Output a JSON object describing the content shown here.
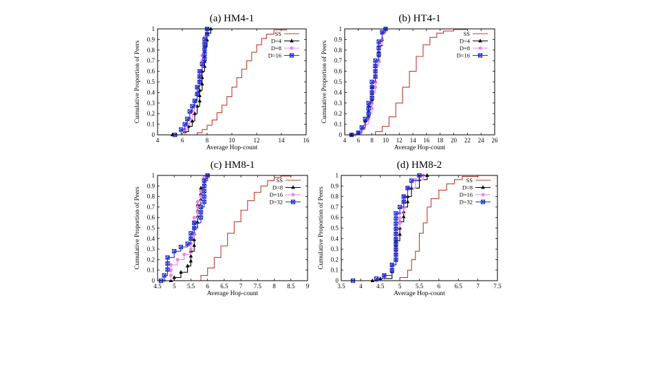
{
  "chart_data": [
    {
      "type": "line",
      "title": "(a) HM4-1",
      "xlabel": "Average Hop-count",
      "ylabel": "Cumulative Proportion of Peers",
      "xlim": [
        4,
        16
      ],
      "ylim": [
        0,
        1
      ],
      "xticks": [
        "4",
        "6",
        "8",
        "10",
        "12",
        "14",
        "16"
      ],
      "yticks": [
        "0",
        "0.1",
        "0.2",
        "0.3",
        "0.4",
        "0.5",
        "0.6",
        "0.7",
        "0.8",
        "0.9",
        "1"
      ],
      "legend_position": "top-right",
      "series": [
        {
          "name": "SS",
          "color": "#c0392b",
          "marker": "none",
          "x": [
            6.8,
            7.2,
            7.6,
            8.0,
            8.4,
            8.8,
            9.2,
            9.6,
            10.0,
            10.4,
            10.8,
            11.2,
            11.6,
            12.0,
            12.4,
            12.8,
            13.4,
            14.4
          ],
          "y": [
            0,
            0.02,
            0.05,
            0.09,
            0.14,
            0.21,
            0.28,
            0.36,
            0.45,
            0.54,
            0.62,
            0.7,
            0.78,
            0.85,
            0.91,
            0.95,
            0.99,
            1.0
          ]
        },
        {
          "name": "D=4",
          "color": "#000000",
          "marker": "triangle",
          "x": [
            5.2,
            6.2,
            6.5,
            6.8,
            7.0,
            7.2,
            7.4,
            7.6,
            7.8,
            8.0,
            8.3
          ],
          "y": [
            0,
            0.03,
            0.08,
            0.13,
            0.2,
            0.27,
            0.42,
            0.6,
            0.83,
            0.96,
            1.0
          ]
        },
        {
          "name": "D=8",
          "color": "#ee82ee",
          "marker": "circle",
          "x": [
            5.5,
            6.2,
            6.4,
            6.6,
            6.8,
            7.0,
            7.2,
            7.4,
            7.6,
            7.8,
            8.0
          ],
          "y": [
            0,
            0.05,
            0.1,
            0.15,
            0.22,
            0.32,
            0.45,
            0.6,
            0.75,
            0.92,
            1.0
          ]
        },
        {
          "name": "D=16",
          "color": "#1a2fd0",
          "marker": "x",
          "x": [
            5.4,
            5.9,
            6.2,
            6.4,
            6.6,
            6.8,
            7.0,
            7.2,
            7.4,
            7.6,
            7.8,
            8.0
          ],
          "y": [
            0,
            0.05,
            0.1,
            0.15,
            0.22,
            0.27,
            0.32,
            0.45,
            0.6,
            0.67,
            0.9,
            1.0
          ]
        }
      ]
    },
    {
      "type": "line",
      "title": "(b) HT4-1",
      "xlabel": "Average Hop-count",
      "ylabel": "Cumulative Proportion of Peers",
      "xlim": [
        4,
        26
      ],
      "ylim": [
        0,
        1
      ],
      "xticks": [
        "4",
        "6",
        "8",
        "10",
        "12",
        "14",
        "16",
        "18",
        "20",
        "22",
        "24",
        "26"
      ],
      "yticks": [
        "0",
        "0.1",
        "0.2",
        "0.3",
        "0.4",
        "0.5",
        "0.6",
        "0.7",
        "0.8",
        "0.9",
        "1"
      ],
      "legend_position": "top-right",
      "series": [
        {
          "name": "SS",
          "color": "#c0392b",
          "marker": "none",
          "x": [
            7.5,
            8.5,
            9.5,
            10.5,
            11.5,
            12.5,
            13.5,
            14.5,
            15.5,
            16.5,
            17.5,
            18.5,
            20.0,
            22.0
          ],
          "y": [
            0,
            0.03,
            0.08,
            0.17,
            0.3,
            0.45,
            0.6,
            0.74,
            0.85,
            0.92,
            0.96,
            0.98,
            0.995,
            1.0
          ]
        },
        {
          "name": "D=4",
          "color": "#000000",
          "marker": "triangle",
          "x": [
            5.0,
            6.0,
            6.5,
            7.0,
            7.5,
            8.0,
            8.5,
            9.0,
            9.5,
            10.0
          ],
          "y": [
            0,
            0.02,
            0.06,
            0.13,
            0.27,
            0.45,
            0.65,
            0.84,
            0.96,
            1.0
          ]
        },
        {
          "name": "D=8",
          "color": "#ee82ee",
          "marker": "circle",
          "x": [
            5.5,
            6.5,
            7.0,
            7.5,
            8.0,
            8.5,
            9.0,
            9.5,
            10.0
          ],
          "y": [
            0,
            0.05,
            0.1,
            0.2,
            0.4,
            0.65,
            0.85,
            0.96,
            1.0
          ]
        },
        {
          "name": "D=16",
          "color": "#1a2fd0",
          "marker": "x",
          "x": [
            5.0,
            6.0,
            6.5,
            7.0,
            7.5,
            8.0,
            8.5,
            9.0,
            9.5,
            10.0
          ],
          "y": [
            0,
            0.02,
            0.07,
            0.15,
            0.3,
            0.5,
            0.7,
            0.88,
            0.97,
            1.0
          ]
        }
      ]
    },
    {
      "type": "line",
      "title": "(c) HM8-1",
      "xlabel": "Average Hop-count",
      "ylabel": "Cumulative Proportion of Peers",
      "xlim": [
        4.5,
        9
      ],
      "ylim": [
        0,
        1
      ],
      "xticks": [
        "4.5",
        "5",
        "5.5",
        "6",
        "6.5",
        "7",
        "7.5",
        "8",
        "8.5",
        "9"
      ],
      "yticks": [
        "0",
        "0.1",
        "0.2",
        "0.3",
        "0.4",
        "0.5",
        "0.6",
        "0.7",
        "0.8",
        "0.9",
        "1"
      ],
      "legend_position": "top-right",
      "series": [
        {
          "name": "SS",
          "color": "#c0392b",
          "marker": "none",
          "x": [
            5.6,
            5.8,
            6.0,
            6.2,
            6.4,
            6.6,
            6.8,
            7.0,
            7.2,
            7.4,
            7.6,
            7.8,
            8.0,
            8.2,
            8.5
          ],
          "y": [
            0,
            0.05,
            0.12,
            0.22,
            0.33,
            0.45,
            0.56,
            0.67,
            0.76,
            0.84,
            0.9,
            0.95,
            0.98,
            0.995,
            1.0
          ]
        },
        {
          "name": "D=8",
          "color": "#000000",
          "marker": "triangle",
          "x": [
            4.9,
            5.0,
            5.2,
            5.4,
            5.5,
            5.6,
            5.7,
            5.8,
            5.9,
            6.0
          ],
          "y": [
            0,
            0.03,
            0.08,
            0.14,
            0.28,
            0.5,
            0.72,
            0.88,
            0.97,
            1.0
          ]
        },
        {
          "name": "D=16",
          "color": "#ee82ee",
          "marker": "circle",
          "x": [
            4.7,
            4.9,
            5.1,
            5.3,
            5.5,
            5.6,
            5.7,
            5.8,
            5.9,
            6.0
          ],
          "y": [
            0,
            0.15,
            0.2,
            0.25,
            0.4,
            0.6,
            0.75,
            0.85,
            0.98,
            1.0
          ]
        },
        {
          "name": "D=32",
          "color": "#1a2fd0",
          "marker": "x",
          "x": [
            4.6,
            4.7,
            4.8,
            5.0,
            5.2,
            5.4,
            5.5,
            5.6,
            5.8,
            5.9,
            6.0
          ],
          "y": [
            0,
            0.05,
            0.22,
            0.28,
            0.32,
            0.35,
            0.45,
            0.55,
            0.7,
            0.95,
            1.0
          ]
        }
      ]
    },
    {
      "type": "line",
      "title": "(d) HM8-2",
      "xlabel": "Average Hop-count",
      "ylabel": "Cumulative Proportion of Peers",
      "xlim": [
        3.5,
        7.5
      ],
      "ylim": [
        0,
        1
      ],
      "xticks": [
        "3.5",
        "4",
        "4.5",
        "5",
        "5.5",
        "6",
        "6.5",
        "7",
        "7.5"
      ],
      "yticks": [
        "0",
        "0.1",
        "0.2",
        "0.3",
        "0.4",
        "0.5",
        "0.6",
        "0.7",
        "0.8",
        "0.9",
        "1"
      ],
      "legend_position": "top-right",
      "series": [
        {
          "name": "SS",
          "color": "#c0392b",
          "marker": "none",
          "x": [
            4.7,
            5.0,
            5.2,
            5.3,
            5.4,
            5.5,
            5.6,
            5.7,
            5.8,
            6.0,
            6.2,
            6.4,
            6.6,
            7.0
          ],
          "y": [
            0,
            0.03,
            0.1,
            0.2,
            0.28,
            0.45,
            0.55,
            0.7,
            0.78,
            0.86,
            0.92,
            0.96,
            0.99,
            1.0
          ]
        },
        {
          "name": "D=8",
          "color": "#000000",
          "marker": "triangle",
          "x": [
            4.3,
            4.5,
            4.8,
            4.9,
            5.0,
            5.1,
            5.2,
            5.3,
            5.5,
            5.7
          ],
          "y": [
            0,
            0.02,
            0.15,
            0.38,
            0.56,
            0.7,
            0.8,
            0.88,
            0.96,
            1.0
          ]
        },
        {
          "name": "D=16",
          "color": "#ee82ee",
          "marker": "circle",
          "x": [
            4.4,
            4.6,
            4.8,
            4.9,
            5.0,
            5.1,
            5.2,
            5.4,
            5.6
          ],
          "y": [
            0,
            0.05,
            0.15,
            0.5,
            0.64,
            0.8,
            0.88,
            0.96,
            1.0
          ]
        },
        {
          "name": "D=32",
          "color": "#1a2fd0",
          "marker": "x",
          "x": [
            3.8,
            4.4,
            4.6,
            4.8,
            4.9,
            5.0,
            5.1,
            5.2,
            5.3,
            5.5
          ],
          "y": [
            0,
            0.02,
            0.05,
            0.15,
            0.64,
            0.7,
            0.8,
            0.88,
            0.95,
            1.0
          ]
        }
      ]
    }
  ]
}
